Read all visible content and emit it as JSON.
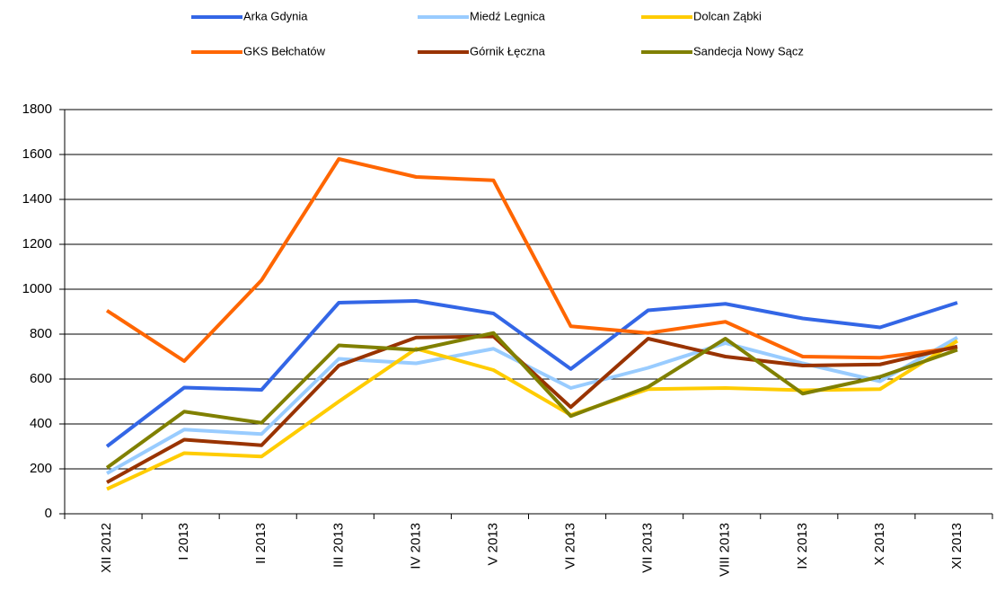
{
  "chart_data": {
    "type": "line",
    "categories": [
      "XII 2012",
      "I 2013",
      "II 2013",
      "III 2013",
      "IV 2013",
      "V 2013",
      "VI 2013",
      "VII 2013",
      "VIII 2013",
      "IX 2013",
      "X 2013",
      "XI 2013"
    ],
    "series": [
      {
        "name": "Arka Gdynia",
        "color": "#3366e6",
        "values": [
          300,
          562,
          552,
          940,
          948,
          892,
          645,
          906,
          935,
          870,
          830,
          940
        ]
      },
      {
        "name": "Miedź Legnica",
        "color": "#99ccff",
        "values": [
          180,
          375,
          355,
          690,
          670,
          735,
          560,
          650,
          760,
          670,
          590,
          785
        ]
      },
      {
        "name": "Dolcan Ząbki",
        "color": "#ffcc00",
        "values": [
          110,
          270,
          255,
          500,
          735,
          640,
          440,
          555,
          560,
          550,
          555,
          770
        ]
      },
      {
        "name": "GKS Bełchatów",
        "color": "#ff6600",
        "values": [
          905,
          680,
          1040,
          1580,
          1500,
          1485,
          835,
          805,
          855,
          700,
          695,
          740
        ]
      },
      {
        "name": "Górnik Łęczna",
        "color": "#993300",
        "values": [
          140,
          330,
          305,
          660,
          785,
          790,
          475,
          780,
          700,
          660,
          665,
          745
        ]
      },
      {
        "name": "Sandecja Nowy Sącz",
        "color": "#808000",
        "values": [
          205,
          455,
          405,
          750,
          730,
          805,
          435,
          565,
          780,
          535,
          610,
          730
        ]
      }
    ],
    "ylim": [
      0,
      1800
    ],
    "yticks": [
      0,
      200,
      400,
      600,
      800,
      1000,
      1200,
      1400,
      1600,
      1800
    ],
    "grid": true,
    "legend": "top"
  }
}
